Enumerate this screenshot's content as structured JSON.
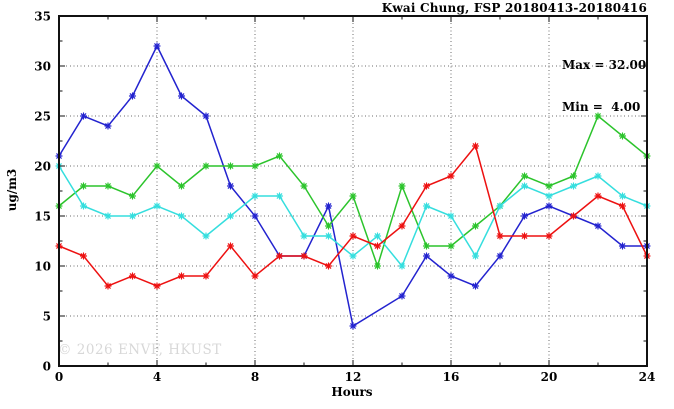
{
  "header": {
    "title": "Kwai Chung, FSP 20180413-20180416"
  },
  "stats_box": {
    "max_line": "Max = 32.00",
    "min_line": "Min =  4.00"
  },
  "axes": {
    "x_label": "Hours",
    "y_label": "ug/m3"
  },
  "watermark": {
    "text": "© 2026 ENVF, HKUST",
    "color": "#d8d8d8"
  },
  "colors": {
    "axis": "#111111",
    "grid": "#6e6e6e",
    "background": "#ffffff"
  },
  "chart_data": {
    "type": "line",
    "title": "Kwai Chung, FSP 20180413-20180416",
    "xlabel": "Hours",
    "ylabel": "ug/m3",
    "xlim": [
      0,
      24
    ],
    "ylim": [
      0,
      35
    ],
    "xticks": [
      0,
      4,
      8,
      12,
      16,
      20,
      24
    ],
    "xminorticks": [
      2,
      6,
      10,
      14,
      18,
      22
    ],
    "yticks": [
      0,
      5,
      10,
      15,
      20,
      25,
      30,
      35
    ],
    "yminorticks": [
      2.5,
      7.5,
      12.5,
      17.5,
      22.5,
      27.5,
      32.5
    ],
    "grid": true,
    "legend_position": "none",
    "stats": {
      "max": 32.0,
      "min": 4.0
    },
    "x": [
      0,
      1,
      2,
      3,
      4,
      5,
      6,
      7,
      8,
      9,
      10,
      11,
      12,
      13,
      14,
      15,
      16,
      17,
      18,
      19,
      20,
      21,
      22,
      23,
      24
    ],
    "series": [
      {
        "name": "series-blue",
        "color": "#2323cf",
        "values": [
          21,
          25,
          24,
          27,
          32,
          27,
          25,
          18,
          15,
          11,
          11,
          16,
          4,
          null,
          7,
          11,
          9,
          8,
          11,
          15,
          16,
          15,
          14,
          12,
          12
        ]
      },
      {
        "name": "series-green",
        "color": "#2cc42c",
        "values": [
          16,
          18,
          18,
          17,
          20,
          18,
          20,
          20,
          20,
          21,
          18,
          14,
          17,
          10,
          18,
          12,
          12,
          14,
          16,
          19,
          18,
          19,
          25,
          23,
          21
        ]
      },
      {
        "name": "series-cyan",
        "color": "#35dede",
        "values": [
          20,
          16,
          15,
          15,
          16,
          15,
          13,
          15,
          17,
          17,
          13,
          13,
          11,
          13,
          10,
          16,
          15,
          11,
          16,
          18,
          17,
          18,
          19,
          17,
          16
        ]
      },
      {
        "name": "series-red",
        "color": "#ed1111",
        "values": [
          12,
          11,
          8,
          9,
          8,
          9,
          9,
          12,
          9,
          11,
          11,
          10,
          13,
          12,
          14,
          18,
          19,
          22,
          13,
          13,
          13,
          15,
          17,
          16,
          11
        ]
      }
    ]
  }
}
